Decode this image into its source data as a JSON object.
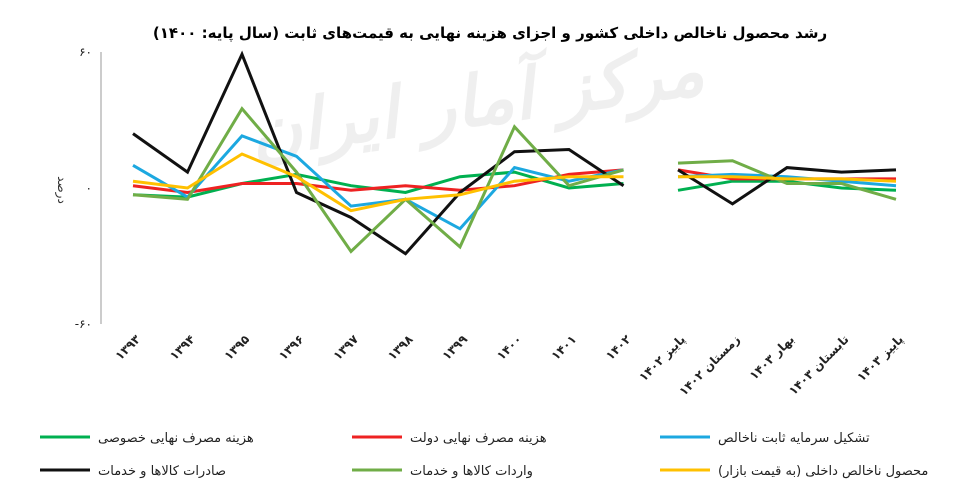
{
  "chart_data": {
    "type": "line",
    "title": "رشد محصول ناخالص داخلی کشور و اجزای هزینه نهایی به قیمت‌های ثابت (سال پایه: ۱۴۰۰)",
    "ylabel": "درصد",
    "xlabel": "",
    "ylim": [
      -60,
      60
    ],
    "yticks": [
      60,
      0,
      -60
    ],
    "ytick_labels": [
      "۶۰",
      "۰",
      "-۶۰"
    ],
    "watermark": "مرکز آمار ایران",
    "categories": [
      "۱۳۹۳",
      "۱۳۹۴",
      "۱۳۹۵",
      "۱۳۹۶",
      "۱۳۹۷",
      "۱۳۹۸",
      "۱۳۹۹",
      "۱۴۰۰",
      "۱۴۰۱",
      "۱۴۰۲",
      "پاییز ۱۴۰۲",
      "زمستان ۱۴۰۲",
      "بهار ۱۴۰۳",
      "تابستان ۱۴۰۳",
      "پاییز ۱۴۰۳"
    ],
    "segments": [
      [
        0,
        9
      ],
      [
        10,
        14
      ]
    ],
    "legend_placement": "bottom",
    "grid": false,
    "series": [
      {
        "name": "هزینه مصرف نهایی خصوصی",
        "color": "#00b050",
        "values": [
          -3,
          -4,
          2,
          6,
          1,
          -2,
          5,
          7,
          0,
          2,
          -1,
          3,
          3,
          0,
          -1
        ]
      },
      {
        "name": "هزینه مصرف نهایی دولت",
        "color": "#ee2222",
        "values": [
          1,
          -2,
          2,
          2,
          -1,
          1,
          -1,
          1,
          6,
          8,
          8,
          4,
          4,
          4,
          4
        ]
      },
      {
        "name": "تشکیل سرمایه ثابت ناخالص",
        "color": "#1ca8e0",
        "values": [
          10,
          -4,
          23,
          14,
          -8,
          -5,
          -18,
          9,
          3,
          8,
          5,
          6,
          5,
          3,
          1
        ]
      },
      {
        "name": "صادرات کالاها و خدمات",
        "color": "#111111",
        "values": [
          24,
          7,
          59,
          -2,
          -13,
          -29,
          -2,
          16,
          17,
          1,
          8,
          -7,
          9,
          7,
          8
        ]
      },
      {
        "name": "واردات کالاها و خدمات",
        "color": "#70ad47",
        "values": [
          -3,
          -5,
          35,
          7,
          -28,
          -5,
          -26,
          27,
          1,
          8,
          11,
          12,
          2,
          2,
          -5
        ]
      },
      {
        "name": "محصول ناخالص داخلی (به قیمت بازار)",
        "color": "#ffc000",
        "values": [
          3,
          0,
          15,
          5,
          -10,
          -5,
          -3,
          3,
          5,
          5,
          5,
          5,
          4,
          4,
          3
        ]
      }
    ]
  }
}
